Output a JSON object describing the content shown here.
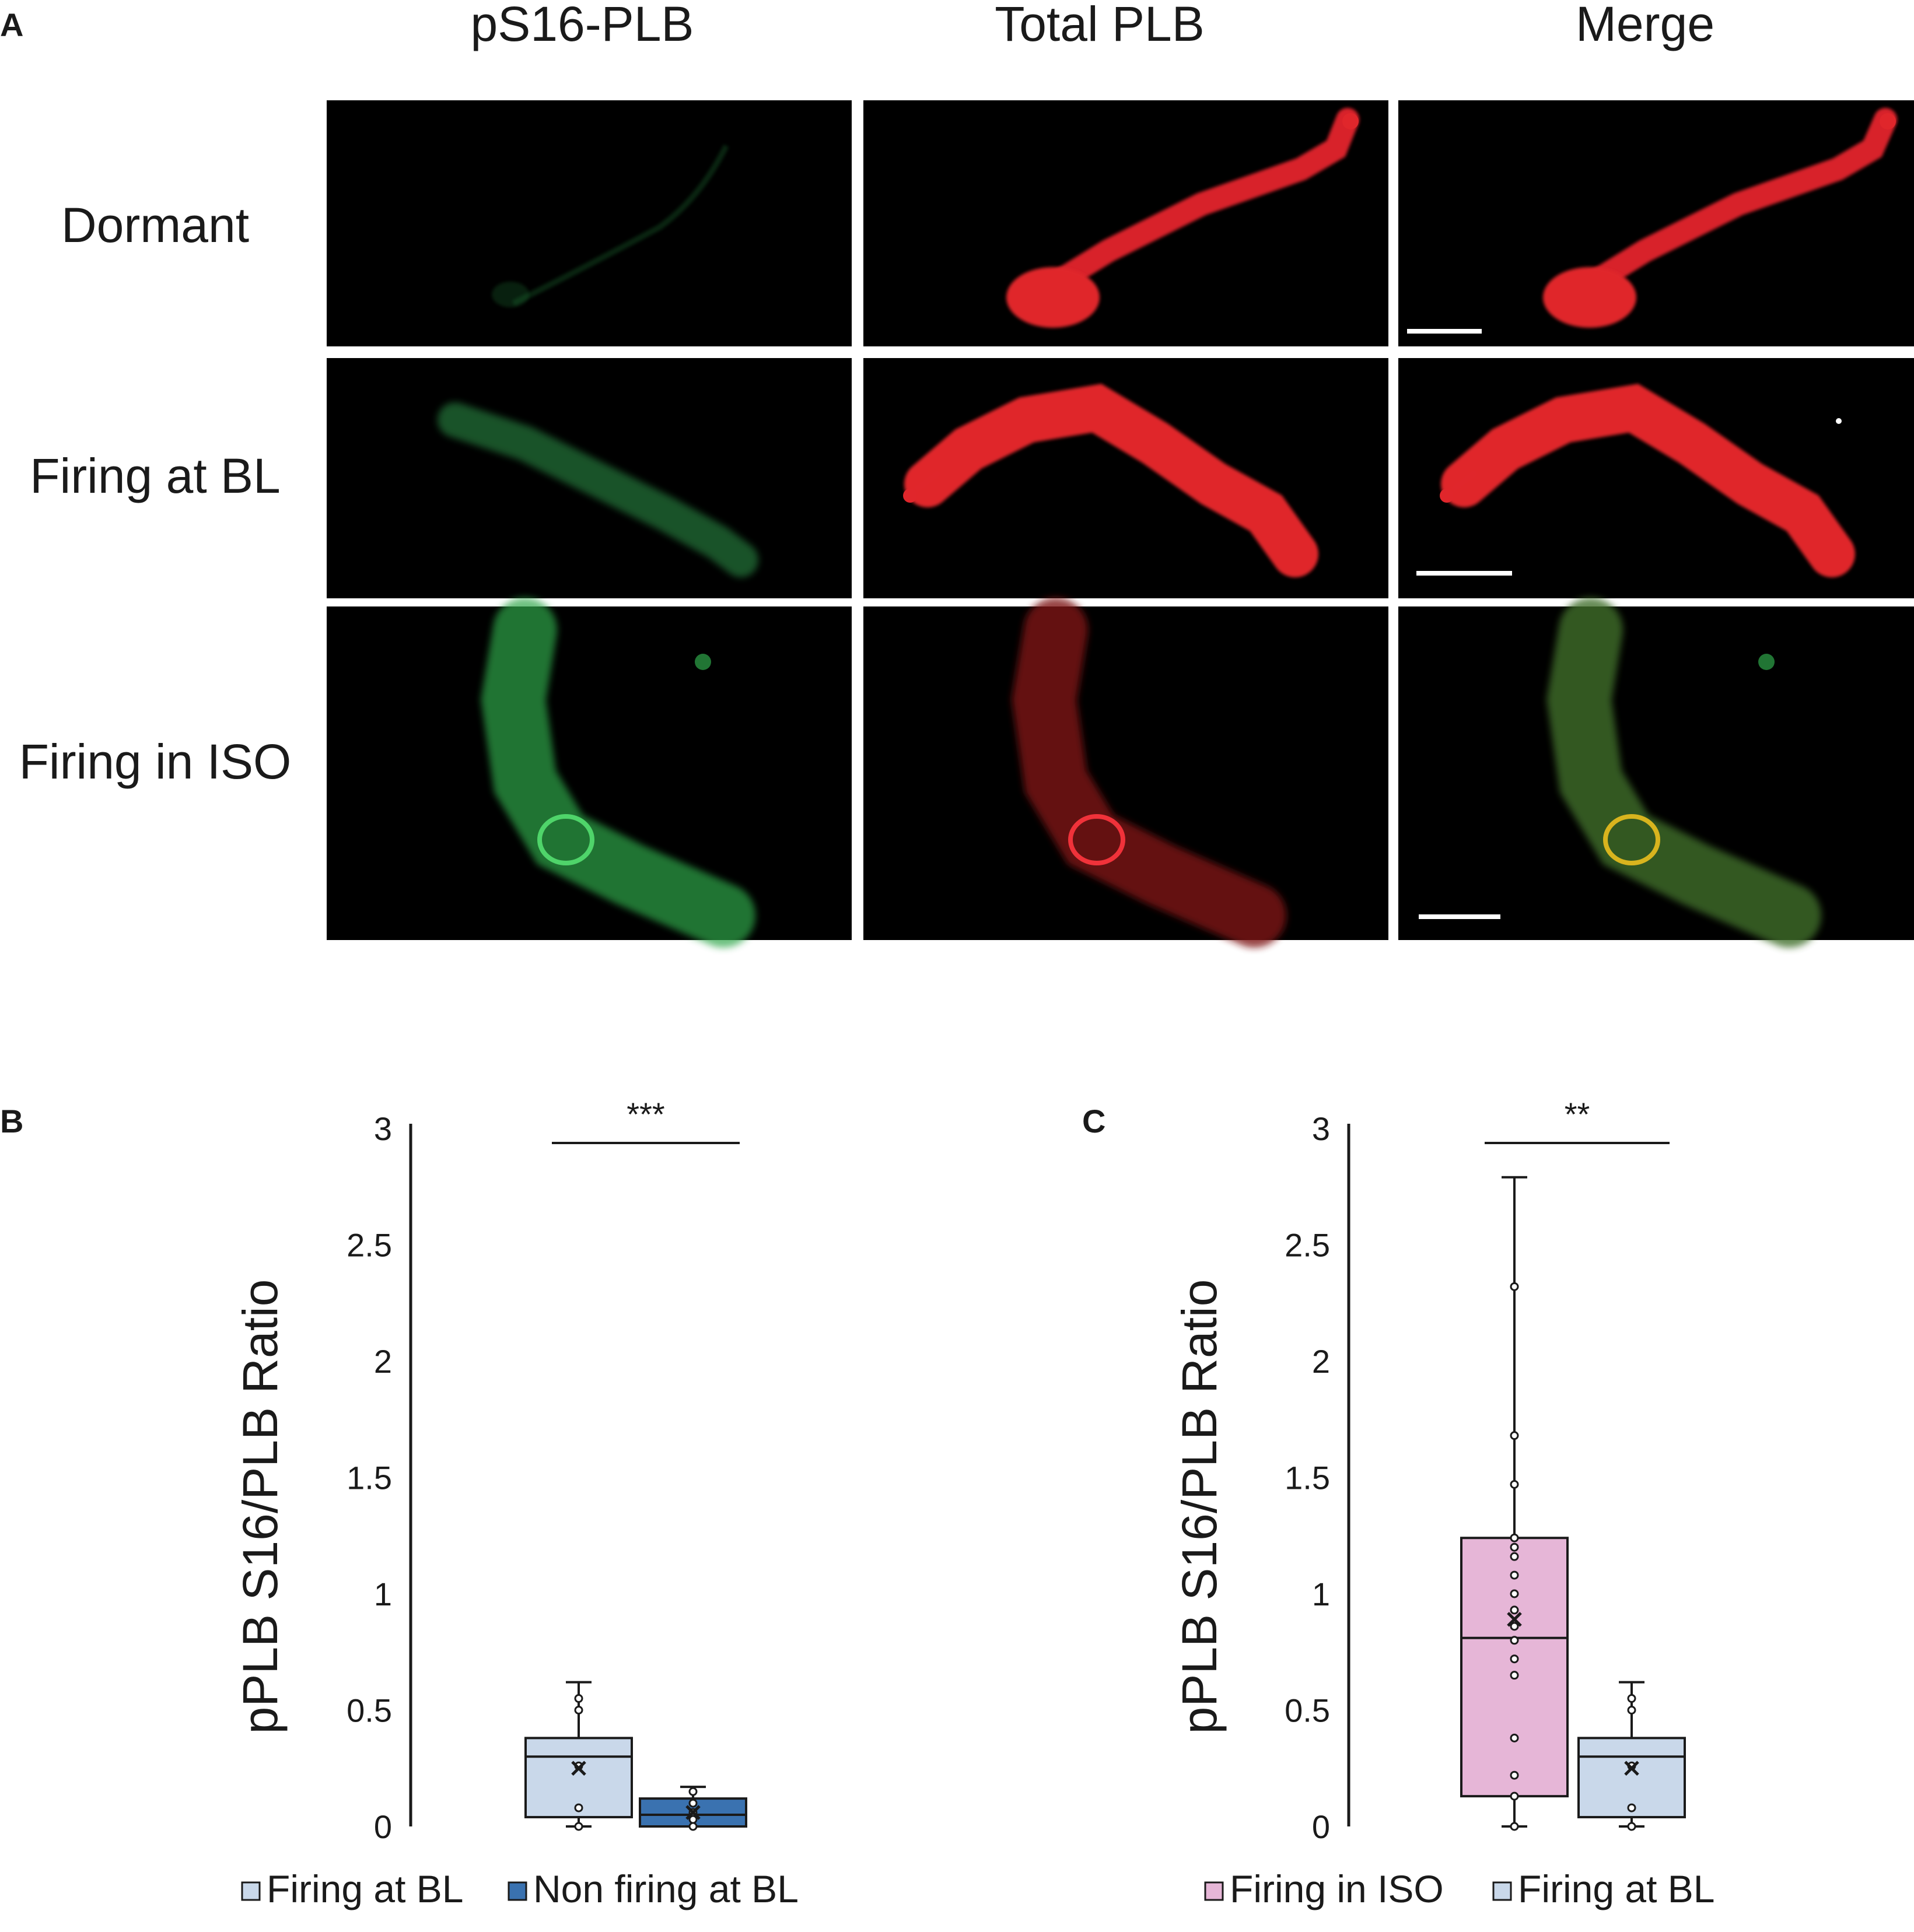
{
  "panel_a": {
    "letter": "A",
    "columns": [
      "pS16-PLB",
      "Total PLB",
      "Merge"
    ],
    "rows": [
      "Dormant",
      "Firing at BL",
      "Firing in ISO"
    ],
    "channels": {
      "green": "#2fa64a",
      "red": "#e0262b",
      "merge_overlap": "#d8b41e",
      "background": "#000000"
    }
  },
  "chart_data": [
    {
      "panel": "B",
      "type": "box",
      "ylabel": "pPLB S16/PLB Ratio",
      "xlabel": "",
      "ylim": [
        0,
        3
      ],
      "yticks": [
        "0",
        "0.5",
        "1",
        "1.5",
        "2",
        "2.5",
        "3"
      ],
      "significance": "***",
      "legend_position": "bottom",
      "series": [
        {
          "name": "Firing at BL",
          "color": "#c9d8ea",
          "min": 0,
          "q1": 0.04,
          "median": 0.3,
          "q3": 0.38,
          "max": 0.62,
          "mean": 0.25,
          "points": [
            0,
            0.08,
            0.26,
            0.5,
            0.55
          ]
        },
        {
          "name": "Non firing at BL",
          "color": "#3a72b0",
          "min": 0,
          "q1": 0,
          "median": 0.05,
          "q3": 0.12,
          "max": 0.17,
          "mean": 0.06,
          "points": [
            0,
            0.03,
            0.06,
            0.1,
            0.15
          ]
        }
      ]
    },
    {
      "panel": "C",
      "type": "box",
      "ylabel": "pPLB S16/PLB Ratio",
      "xlabel": "",
      "ylim": [
        0,
        3
      ],
      "yticks": [
        "0",
        "0.5",
        "1",
        "1.5",
        "2",
        "2.5",
        "3"
      ],
      "significance": "**",
      "legend_position": "bottom",
      "series": [
        {
          "name": "Firing in ISO",
          "color": "#e6b6d7",
          "min": 0,
          "q1": 0.13,
          "median": 0.81,
          "q3": 1.24,
          "max": 2.79,
          "mean": 0.89,
          "points": [
            0,
            0.13,
            0.22,
            0.38,
            0.65,
            0.72,
            0.8,
            0.86,
            0.93,
            1.0,
            1.08,
            1.16,
            1.2,
            1.24,
            1.47,
            1.68,
            2.32
          ]
        },
        {
          "name": "Firing at BL",
          "color": "#c9d8ea",
          "min": 0,
          "q1": 0.04,
          "median": 0.3,
          "q3": 0.38,
          "max": 0.62,
          "mean": 0.25,
          "points": [
            0,
            0.08,
            0.26,
            0.5,
            0.55
          ]
        }
      ]
    }
  ]
}
